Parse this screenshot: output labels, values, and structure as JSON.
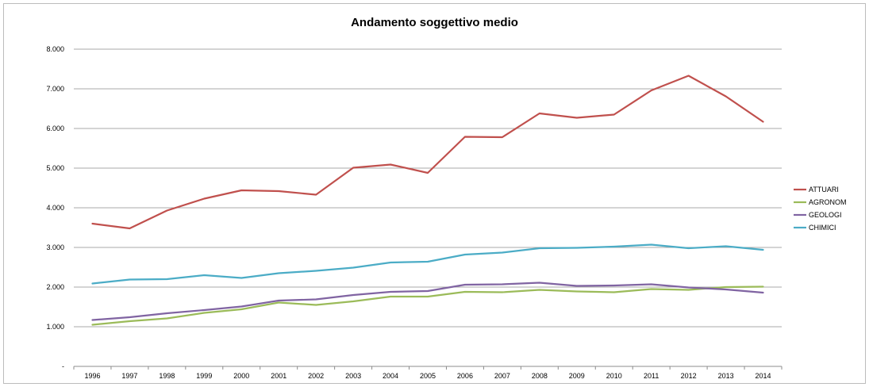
{
  "chart_data": {
    "type": "line",
    "title": "Andamento soggettivo medio",
    "xlabel": "",
    "ylabel": "",
    "ylim": [
      0,
      8000
    ],
    "y_ticks": [
      0,
      1000,
      2000,
      3000,
      4000,
      5000,
      6000,
      7000,
      8000
    ],
    "y_tick_labels": [
      "-",
      "1.000",
      "2.000",
      "3.000",
      "4.000",
      "5.000",
      "6.000",
      "7.000",
      "8.000"
    ],
    "grid": true,
    "legend_position": "right",
    "categories": [
      "1996",
      "1997",
      "1998",
      "1999",
      "2000",
      "2001",
      "2002",
      "2003",
      "2004",
      "2005",
      "2006",
      "2007",
      "2008",
      "2009",
      "2010",
      "2011",
      "2012",
      "2013",
      "2014"
    ],
    "series": [
      {
        "name": "ATTUARI",
        "color": "#c0504d",
        "values": [
          3600,
          3480,
          3930,
          4230,
          4440,
          4420,
          4330,
          5010,
          5090,
          4880,
          5790,
          5780,
          6380,
          6270,
          6350,
          6960,
          7330,
          6810,
          6170
        ]
      },
      {
        "name": "AGRONOM",
        "color": "#9bbb59",
        "values": [
          1050,
          1140,
          1210,
          1350,
          1440,
          1610,
          1550,
          1640,
          1760,
          1760,
          1880,
          1870,
          1930,
          1890,
          1870,
          1950,
          1930,
          2000,
          2010
        ]
      },
      {
        "name": "GEOLOGI",
        "color": "#8064a2",
        "values": [
          1170,
          1240,
          1340,
          1420,
          1510,
          1660,
          1690,
          1800,
          1880,
          1900,
          2060,
          2070,
          2110,
          2030,
          2040,
          2070,
          1990,
          1940,
          1860
        ]
      },
      {
        "name": "CHIMICI",
        "color": "#4bacc6",
        "values": [
          2090,
          2190,
          2200,
          2300,
          2230,
          2350,
          2410,
          2490,
          2620,
          2640,
          2820,
          2870,
          2980,
          2990,
          3020,
          3070,
          2980,
          3030,
          2940
        ]
      }
    ]
  }
}
